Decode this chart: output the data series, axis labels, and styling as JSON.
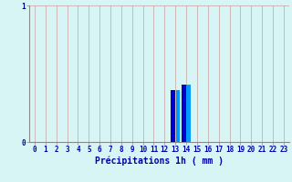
{
  "hours": [
    0,
    1,
    2,
    3,
    4,
    5,
    6,
    7,
    8,
    9,
    10,
    11,
    12,
    13,
    14,
    15,
    16,
    17,
    18,
    19,
    20,
    21,
    22,
    23
  ],
  "values": [
    0,
    0,
    0,
    0,
    0,
    0,
    0,
    0,
    0,
    0,
    0,
    0,
    0,
    0.38,
    0.42,
    0,
    0,
    0,
    0,
    0,
    0,
    0,
    0,
    0
  ],
  "bar_color_dark": "#0000cc",
  "bar_color_light": "#0099ff",
  "background_color": "#d8f5f5",
  "vgrid_color": "#c8a0a0",
  "hgrid_color": "#c8c8d0",
  "axis_color": "#0000aa",
  "spine_color": "#888888",
  "xlabel": "Précipitations 1h ( mm )",
  "ylim": [
    0,
    1
  ],
  "xlim": [
    -0.5,
    23.5
  ],
  "yticks": [
    0,
    1
  ],
  "xticks": [
    0,
    1,
    2,
    3,
    4,
    5,
    6,
    7,
    8,
    9,
    10,
    11,
    12,
    13,
    14,
    15,
    16,
    17,
    18,
    19,
    20,
    21,
    22,
    23
  ],
  "xlabel_fontsize": 7,
  "tick_fontsize": 5.5
}
